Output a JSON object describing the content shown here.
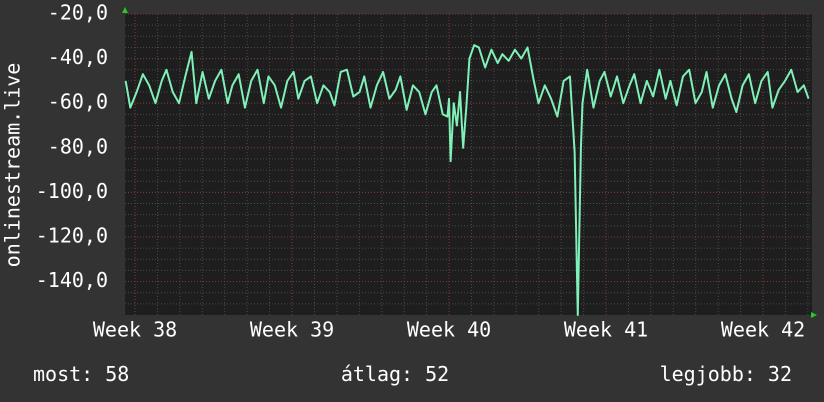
{
  "chart_data": {
    "type": "line",
    "ylabel": "onlinestream.live",
    "x": [
      37.94,
      37.97,
      38.01,
      38.05,
      38.09,
      38.13,
      38.17,
      38.2,
      38.24,
      38.28,
      38.32,
      38.36,
      38.39,
      38.43,
      38.47,
      38.51,
      38.55,
      38.59,
      38.62,
      38.66,
      38.7,
      38.74,
      38.78,
      38.82,
      38.85,
      38.89,
      38.93,
      38.97,
      39.01,
      39.04,
      39.08,
      39.12,
      39.16,
      39.2,
      39.24,
      39.27,
      39.31,
      39.35,
      39.39,
      39.43,
      39.46,
      39.5,
      39.54,
      39.58,
      39.62,
      39.66,
      39.69,
      39.73,
      39.77,
      39.81,
      39.85,
      39.89,
      39.92,
      39.96,
      39.99,
      40.0,
      40.01,
      40.03,
      40.05,
      40.07,
      40.09,
      40.11,
      40.13,
      40.16,
      40.19,
      40.23,
      40.27,
      40.31,
      40.34,
      40.38,
      40.42,
      40.46,
      40.5,
      40.54,
      40.57,
      40.61,
      40.65,
      40.69,
      40.73,
      40.77,
      40.8,
      40.82,
      40.84,
      40.85,
      40.88,
      40.92,
      40.96,
      40.99,
      41.03,
      41.07,
      41.11,
      41.15,
      41.18,
      41.22,
      41.26,
      41.3,
      41.34,
      41.38,
      41.41,
      41.45,
      41.49,
      41.53,
      41.57,
      41.61,
      41.64,
      41.68,
      41.72,
      41.76,
      41.8,
      41.83,
      41.87,
      41.91,
      41.95,
      41.99,
      42.03,
      42.06,
      42.1,
      42.14,
      42.18,
      42.22,
      42.26,
      42.29
    ],
    "values": [
      -50,
      -62,
      -55,
      -47,
      -52,
      -60,
      -50,
      -45,
      -55,
      -60,
      -48,
      -37,
      -60,
      -46,
      -58,
      -50,
      -45,
      -60,
      -52,
      -47,
      -62,
      -50,
      -45,
      -60,
      -48,
      -52,
      -62,
      -50,
      -46,
      -58,
      -50,
      -48,
      -60,
      -52,
      -55,
      -61,
      -46,
      -45,
      -57,
      -55,
      -48,
      -62,
      -52,
      -46,
      -58,
      -54,
      -48,
      -63,
      -52,
      -55,
      -65,
      -55,
      -52,
      -65,
      -66,
      -58,
      -86,
      -60,
      -70,
      -55,
      -80,
      -62,
      -40,
      -34,
      -35,
      -44,
      -36,
      -42,
      -38,
      -41,
      -36,
      -40,
      -35,
      -50,
      -60,
      -52,
      -58,
      -66,
      -50,
      -48,
      -82,
      -155,
      -80,
      -60,
      -45,
      -62,
      -50,
      -46,
      -57,
      -48,
      -60,
      -52,
      -47,
      -60,
      -50,
      -57,
      -45,
      -58,
      -50,
      -61,
      -48,
      -45,
      -60,
      -55,
      -46,
      -62,
      -52,
      -47,
      -58,
      -64,
      -52,
      -47,
      -60,
      -50,
      -46,
      -62,
      -54,
      -50,
      -45,
      -55,
      -52,
      -58
    ],
    "color": "#7ff0b8",
    "xlim": [
      37.936,
      42.312
    ],
    "xticks": [
      {
        "value": 38,
        "label": "Week 38"
      },
      {
        "value": 39,
        "label": "Week 39"
      },
      {
        "value": 40,
        "label": "Week 40"
      },
      {
        "value": 41,
        "label": "Week 41"
      },
      {
        "value": 42,
        "label": "Week 42"
      }
    ],
    "ylim": [
      -155,
      -20
    ],
    "yticks": [
      {
        "value": -20,
        "label": "-20,0"
      },
      {
        "value": -40,
        "label": "-40,0"
      },
      {
        "value": -60,
        "label": "-60,0"
      },
      {
        "value": -80,
        "label": "-80,0"
      },
      {
        "value": -100,
        "label": "-100,0"
      },
      {
        "value": -120,
        "label": "-120,0"
      },
      {
        "value": -140,
        "label": "-140,0"
      }
    ],
    "grid": true,
    "stats": [
      {
        "label": "most:",
        "value": 58
      },
      {
        "label": "átlag:",
        "value": 52
      },
      {
        "label": "legjobb:",
        "value": 32
      }
    ]
  }
}
